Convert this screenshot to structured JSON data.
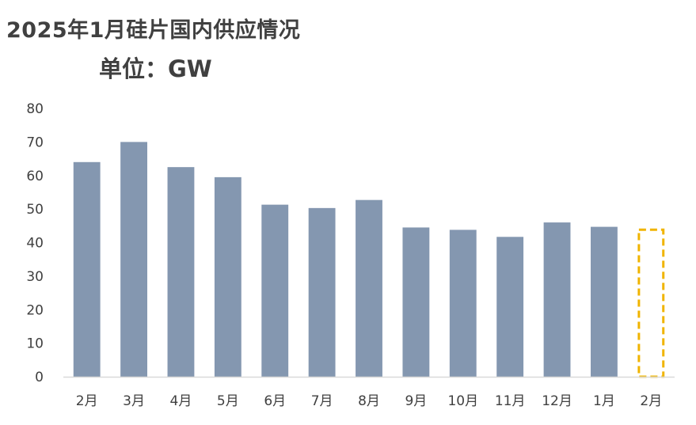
{
  "title": "2025年1月硅片国内供应情况",
  "subtitle": "单位：GW",
  "chart_data": {
    "type": "bar",
    "categories": [
      "2月",
      "3月",
      "4月",
      "5月",
      "6月",
      "7月",
      "8月",
      "9月",
      "10月",
      "11月",
      "12月",
      "1月",
      "2月"
    ],
    "values": [
      64,
      70,
      62.5,
      59.5,
      51.3,
      50.3,
      52.7,
      44.5,
      43.8,
      41.7,
      46,
      44.7,
      44.2
    ],
    "forecast_index": 12,
    "ylim": [
      0,
      80
    ],
    "yticks": [
      0,
      10,
      20,
      30,
      40,
      50,
      60,
      70,
      80
    ],
    "grid": false,
    "colors": {
      "bar": "#8497b0",
      "forecast_outline": "#f0b400",
      "axis": "#d9d9d9"
    }
  }
}
